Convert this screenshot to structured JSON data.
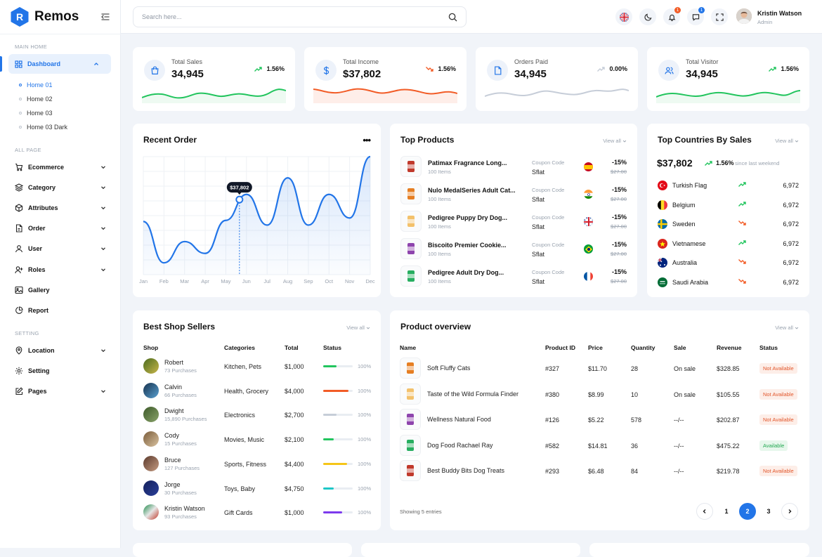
{
  "brand": {
    "name": "Remos",
    "accent": "#2275E8"
  },
  "sidebar": {
    "sections": {
      "main": "MAIN HOME",
      "all": "ALL PAGE",
      "setting": "SETTING"
    },
    "dashboard": "Dashboard",
    "sub_items": [
      {
        "label": "Home 01"
      },
      {
        "label": "Home 02"
      },
      {
        "label": "Home 03"
      },
      {
        "label": "Home 03 Dark"
      }
    ],
    "nav_items": [
      {
        "label": "Ecommerce",
        "icon": "cart-icon"
      },
      {
        "label": "Category",
        "icon": "layers-icon"
      },
      {
        "label": "Attributes",
        "icon": "cube-icon"
      },
      {
        "label": "Order",
        "icon": "file-icon"
      },
      {
        "label": "User",
        "icon": "user-icon"
      },
      {
        "label": "Roles",
        "icon": "user-plus-icon"
      },
      {
        "label": "Gallery",
        "icon": "image-icon"
      },
      {
        "label": "Report",
        "icon": "pie-icon"
      }
    ],
    "setting_items": [
      {
        "label": "Location",
        "icon": "pin-icon"
      },
      {
        "label": "Setting",
        "icon": "gear-icon"
      },
      {
        "label": "Pages",
        "icon": "edit-icon"
      }
    ]
  },
  "header": {
    "search_placeholder": "Search here...",
    "notif_count": "1",
    "msg_count": "1",
    "user_name": "Kristin Watson",
    "user_role": "Admin"
  },
  "stats": [
    {
      "label": "Total Sales",
      "value": "34,945",
      "pct": "1.56%",
      "trend": "up",
      "color": "#22C55E"
    },
    {
      "label": "Total Income",
      "value": "$37,802",
      "pct": "1.56%",
      "trend": "down",
      "color": "#F25C26"
    },
    {
      "label": "Orders Paid",
      "value": "34,945",
      "pct": "0.00%",
      "trend": "flat",
      "color": "#C6CDD8"
    },
    {
      "label": "Total Visitor",
      "value": "34,945",
      "pct": "1.56%",
      "trend": "up",
      "color": "#22C55E"
    }
  ],
  "recent_order": {
    "title": "Recent Order",
    "menu": "•••",
    "tooltip": "$37,802",
    "chart_data": {
      "type": "line",
      "x": [
        "Jan",
        "Feb",
        "Mar",
        "Apr",
        "May",
        "Jun",
        "Jul",
        "Aug",
        "Sep",
        "Oct",
        "Nov",
        "Dec"
      ],
      "series": [
        {
          "values": [
            45,
            10,
            28,
            18,
            46,
            68,
            42,
            82,
            42,
            68,
            48,
            100
          ]
        }
      ],
      "highlight": {
        "x": "Jun",
        "label": "$37,802"
      }
    }
  },
  "top_products": {
    "title": "Top Products",
    "view_all": "View all",
    "items": [
      {
        "name": "Patimax Fragrance Long...",
        "count": "100 Items",
        "code_label": "Coupon Code",
        "code": "Sflat",
        "flag": "es",
        "discount": "-15%",
        "old": "$27.00"
      },
      {
        "name": "Nulo MedalSeries Adult Cat...",
        "count": "100 Items",
        "code_label": "Coupon Code",
        "code": "Sflat",
        "flag": "in",
        "discount": "-15%",
        "old": "$27.00"
      },
      {
        "name": "Pedigree Puppy Dry Dog...",
        "count": "100 Items",
        "code_label": "Coupon Code",
        "code": "Sflat",
        "flag": "uk",
        "discount": "-15%",
        "old": "$27.00"
      },
      {
        "name": "Biscoito Premier Cookie...",
        "count": "100 Items",
        "code_label": "Coupon Code",
        "code": "Sflat",
        "flag": "br",
        "discount": "-15%",
        "old": "$27.00"
      },
      {
        "name": "Pedigree Adult Dry Dog...",
        "count": "100 Items",
        "code_label": "Coupon Code",
        "code": "Sflat",
        "flag": "fr",
        "discount": "-15%",
        "old": "$27.00"
      }
    ]
  },
  "top_countries": {
    "title": "Top Countries By Sales",
    "view_all": "View all",
    "value": "$37,802",
    "pct": "1.56%",
    "since": "since last weekend",
    "items": [
      {
        "name": "Turkish Flag",
        "value": "6,972",
        "trend": "up"
      },
      {
        "name": "Belgium",
        "value": "6,972",
        "trend": "up"
      },
      {
        "name": "Sweden",
        "value": "6,972",
        "trend": "down"
      },
      {
        "name": "Vietnamese",
        "value": "6,972",
        "trend": "up"
      },
      {
        "name": "Australia",
        "value": "6,972",
        "trend": "down"
      },
      {
        "name": "Saudi Arabia",
        "value": "6,972",
        "trend": "down"
      }
    ]
  },
  "best_sellers": {
    "title": "Best Shop Sellers",
    "view_all": "View all",
    "headers": [
      "Shop",
      "Categories",
      "Total",
      "Status"
    ],
    "rows": [
      {
        "name": "Robert",
        "purchases": "73 Purchases",
        "category": "Kitchen, Pets",
        "total": "$1,000",
        "pct": "100%",
        "fill": 0.45,
        "color": "#22C55E"
      },
      {
        "name": "Calvin",
        "purchases": "66 Purchases",
        "category": "Health, Grocery",
        "total": "$4,000",
        "pct": "100%",
        "fill": 0.85,
        "color": "#F25C26"
      },
      {
        "name": "Dwight",
        "purchases": "15,890 Purchases",
        "category": "Electronics",
        "total": "$2,700",
        "pct": "100%",
        "fill": 0.45,
        "color": "#C6CDD8"
      },
      {
        "name": "Cody",
        "purchases": "15 Purchases",
        "category": "Movies, Music",
        "total": "$2,100",
        "pct": "100%",
        "fill": 0.35,
        "color": "#22C55E"
      },
      {
        "name": "Bruce",
        "purchases": "127 Purchases",
        "category": "Sports, Fitness",
        "total": "$4,400",
        "pct": "100%",
        "fill": 0.8,
        "color": "#F5C518"
      },
      {
        "name": "Jorge",
        "purchases": "30 Purchases",
        "category": "Toys, Baby",
        "total": "$4,750",
        "pct": "100%",
        "fill": 0.35,
        "color": "#1EC7C7"
      },
      {
        "name": "Kristin Watson",
        "purchases": "93 Purchases",
        "category": "Gift Cards",
        "total": "$1,000",
        "pct": "100%",
        "fill": 0.65,
        "color": "#7C3AED"
      }
    ]
  },
  "product_overview": {
    "title": "Product overview",
    "view_all": "View all",
    "headers": [
      "Name",
      "Product ID",
      "Price",
      "Quantity",
      "Sale",
      "Revenue",
      "Status"
    ],
    "rows": [
      {
        "name": "Soft Fluffy Cats",
        "id": "#327",
        "price": "$11.70",
        "qty": "28",
        "sale": "On sale",
        "revenue": "$328.85",
        "status": "Not Available"
      },
      {
        "name": "Taste of the Wild Formula Finder",
        "id": "#380",
        "price": "$8.99",
        "qty": "10",
        "sale": "On sale",
        "revenue": "$105.55",
        "status": "Not Available"
      },
      {
        "name": "Wellness Natural Food",
        "id": "#126",
        "price": "$5.22",
        "qty": "578",
        "sale": "--/--",
        "revenue": "$202.87",
        "status": "Not Available"
      },
      {
        "name": "Dog Food Rachael Ray",
        "id": "#582",
        "price": "$14.81",
        "qty": "36",
        "sale": "--/--",
        "revenue": "$475.22",
        "status": "Available"
      },
      {
        "name": "Best Buddy Bits Dog Treats",
        "id": "#293",
        "price": "$6.48",
        "qty": "84",
        "sale": "--/--",
        "revenue": "$219.78",
        "status": "Not Available"
      }
    ],
    "showing": "Showing 5 entries",
    "pages": [
      "1",
      "2",
      "3"
    ],
    "current_page": "2"
  }
}
